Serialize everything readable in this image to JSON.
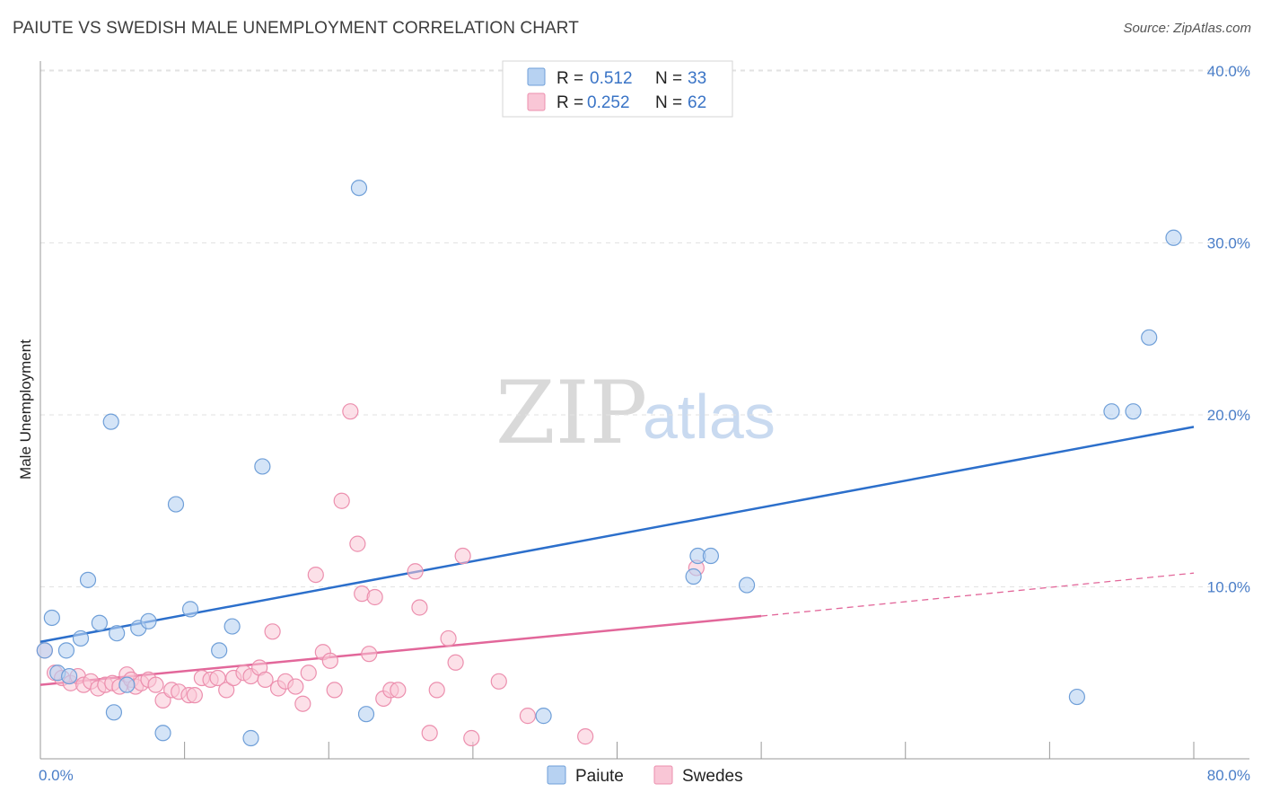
{
  "title": "PAIUTE VS SWEDISH MALE UNEMPLOYMENT CORRELATION CHART",
  "source": "Source: ZipAtlas.com",
  "watermark": {
    "part1": "ZIP",
    "part2": "atlas"
  },
  "colors": {
    "paiute_fill": "#b7d2f2",
    "paiute_stroke": "#6f9fd8",
    "paiute_line": "#2c6fcb",
    "swedes_fill": "#f9c6d6",
    "swedes_stroke": "#ec8fae",
    "swedes_line": "#e2679a",
    "grid": "#e2e2e2",
    "tick_text": "#4a7ec8"
  },
  "legend": {
    "rows": [
      {
        "r_label": "R =",
        "r_value": "0.512",
        "n_label": "N =",
        "n_value": "33"
      },
      {
        "r_label": "R =",
        "r_value": "0.252",
        "n_label": "N =",
        "n_value": "62"
      }
    ]
  },
  "bottom_legend": [
    "Paiute",
    "Swedes"
  ],
  "chart_data": {
    "type": "scatter",
    "title": "PAIUTE VS SWEDISH MALE UNEMPLOYMENT CORRELATION CHART",
    "xlabel": "",
    "ylabel": "Male Unemployment",
    "xlim": [
      0,
      80
    ],
    "ylim": [
      0,
      42
    ],
    "x_tick_labels": [
      "0.0%",
      "80.0%"
    ],
    "y_ticks": [
      10,
      20,
      30,
      40
    ],
    "y_tick_labels": [
      "10.0%",
      "20.0%",
      "30.0%",
      "40.0%"
    ],
    "grid": true,
    "legend_position": "top-center",
    "series": [
      {
        "name": "Paiute",
        "r": 0.512,
        "n": 33,
        "points": [
          [
            0.3,
            6.3
          ],
          [
            0.8,
            8.2
          ],
          [
            1.2,
            5.0
          ],
          [
            1.8,
            6.3
          ],
          [
            2.0,
            4.8
          ],
          [
            2.8,
            7.0
          ],
          [
            3.3,
            10.4
          ],
          [
            4.1,
            7.9
          ],
          [
            4.9,
            19.6
          ],
          [
            5.1,
            2.7
          ],
          [
            5.3,
            7.3
          ],
          [
            6.0,
            4.3
          ],
          [
            6.8,
            7.6
          ],
          [
            7.5,
            8.0
          ],
          [
            8.5,
            1.5
          ],
          [
            9.4,
            14.8
          ],
          [
            10.4,
            8.7
          ],
          [
            12.4,
            6.3
          ],
          [
            13.3,
            7.7
          ],
          [
            14.6,
            1.2
          ],
          [
            15.4,
            17.0
          ],
          [
            22.1,
            33.2
          ],
          [
            22.6,
            2.6
          ],
          [
            34.9,
            2.5
          ],
          [
            45.3,
            10.6
          ],
          [
            45.6,
            11.8
          ],
          [
            46.5,
            11.8
          ],
          [
            49.0,
            10.1
          ],
          [
            71.9,
            3.6
          ],
          [
            74.3,
            20.2
          ],
          [
            75.8,
            20.2
          ],
          [
            76.9,
            24.5
          ],
          [
            78.6,
            30.3
          ]
        ],
        "trendline": {
          "x0": 0,
          "y0": 6.8,
          "x1": 80,
          "y1": 19.3
        }
      },
      {
        "name": "Swedes",
        "r": 0.252,
        "n": 62,
        "points": [
          [
            0.3,
            6.3
          ],
          [
            1.0,
            5.0
          ],
          [
            1.5,
            4.7
          ],
          [
            2.1,
            4.4
          ],
          [
            2.6,
            4.8
          ],
          [
            3.0,
            4.3
          ],
          [
            3.5,
            4.5
          ],
          [
            4.0,
            4.1
          ],
          [
            4.5,
            4.3
          ],
          [
            5.0,
            4.4
          ],
          [
            5.5,
            4.2
          ],
          [
            6.0,
            4.9
          ],
          [
            6.3,
            4.6
          ],
          [
            6.6,
            4.2
          ],
          [
            7.0,
            4.4
          ],
          [
            7.5,
            4.6
          ],
          [
            8.0,
            4.3
          ],
          [
            8.5,
            3.4
          ],
          [
            9.1,
            4.0
          ],
          [
            9.6,
            3.9
          ],
          [
            10.3,
            3.7
          ],
          [
            10.7,
            3.7
          ],
          [
            11.2,
            4.7
          ],
          [
            11.8,
            4.6
          ],
          [
            12.3,
            4.7
          ],
          [
            12.9,
            4.0
          ],
          [
            13.4,
            4.7
          ],
          [
            14.1,
            5.0
          ],
          [
            14.6,
            4.8
          ],
          [
            15.2,
            5.3
          ],
          [
            15.6,
            4.6
          ],
          [
            16.1,
            7.4
          ],
          [
            16.5,
            4.1
          ],
          [
            17.0,
            4.5
          ],
          [
            17.7,
            4.2
          ],
          [
            18.2,
            3.2
          ],
          [
            18.6,
            5.0
          ],
          [
            19.1,
            10.7
          ],
          [
            19.6,
            6.2
          ],
          [
            20.1,
            5.7
          ],
          [
            20.4,
            4.0
          ],
          [
            20.9,
            15.0
          ],
          [
            21.5,
            20.2
          ],
          [
            22.0,
            12.5
          ],
          [
            22.3,
            9.6
          ],
          [
            22.8,
            6.1
          ],
          [
            23.2,
            9.4
          ],
          [
            23.8,
            3.5
          ],
          [
            24.3,
            4.0
          ],
          [
            24.8,
            4.0
          ],
          [
            26.0,
            10.9
          ],
          [
            26.3,
            8.8
          ],
          [
            27.0,
            1.5
          ],
          [
            27.5,
            4.0
          ],
          [
            28.3,
            7.0
          ],
          [
            28.8,
            5.6
          ],
          [
            29.3,
            11.8
          ],
          [
            29.9,
            1.2
          ],
          [
            31.8,
            4.5
          ],
          [
            33.8,
            2.5
          ],
          [
            37.8,
            1.3
          ],
          [
            45.5,
            11.1
          ]
        ],
        "trendline": {
          "x0": 0,
          "y0": 4.3,
          "x1": 50,
          "y1": 8.3,
          "dash_x1": 80,
          "dash_y1": 10.8
        }
      }
    ]
  }
}
